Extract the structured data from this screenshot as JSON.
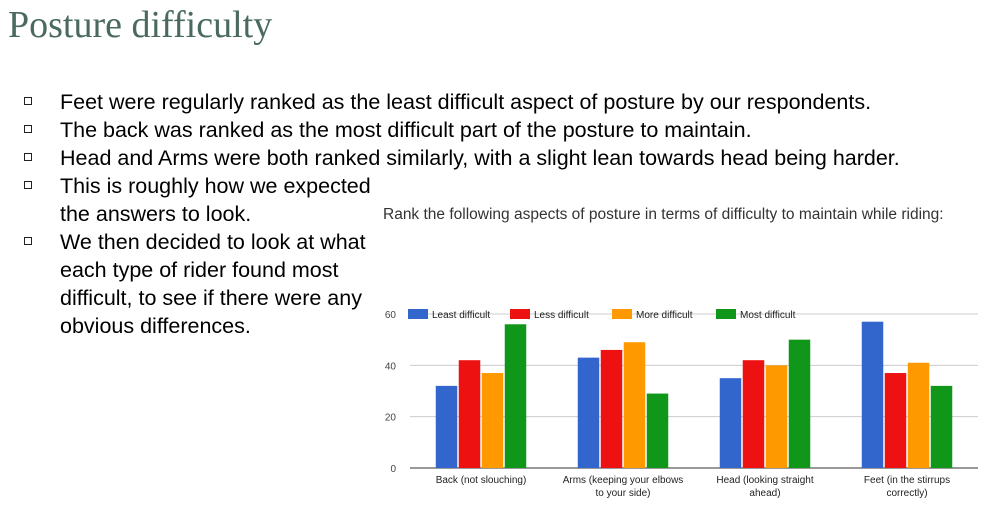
{
  "slide": {
    "title": "Posture difficulty",
    "bullets": [
      "Feet were regularly ranked as the least difficult aspect of posture by our respondents.",
      "The back was ranked as the most difficult part of the posture to maintain.",
      "Head and Arms were both ranked similarly, with a slight lean towards head being harder.",
      "This is roughly how we expected the answers to look.",
      "We then decided to look at what each type of rider found most difficult, to see if there were any obvious differences."
    ],
    "chart_question": "Rank the following aspects of posture in terms of difficulty to maintain while riding:"
  },
  "chart_data": {
    "type": "bar",
    "title": "Rank the following aspects of posture in terms of difficulty to maintain while riding:",
    "categories": [
      [
        "Back (not slouching)"
      ],
      [
        "Arms (keeping your elbows",
        "to your side)"
      ],
      [
        "Head (looking straight",
        "ahead)"
      ],
      [
        "Feet (in the stirrups",
        "correctly)"
      ]
    ],
    "series": [
      {
        "name": "Least difficult",
        "color": "#3366cc",
        "values": [
          32,
          43,
          35,
          57
        ]
      },
      {
        "name": "Less difficult",
        "color": "#ee1111",
        "values": [
          42,
          46,
          42,
          37
        ]
      },
      {
        "name": "More difficult",
        "color": "#ff9900",
        "values": [
          37,
          49,
          40,
          41
        ]
      },
      {
        "name": "Most difficult",
        "color": "#109618",
        "values": [
          56,
          29,
          50,
          32
        ]
      }
    ],
    "yticks": [
      0,
      20,
      40,
      60
    ],
    "ylim": [
      0,
      60
    ],
    "legend_position": "top",
    "grid": true
  }
}
